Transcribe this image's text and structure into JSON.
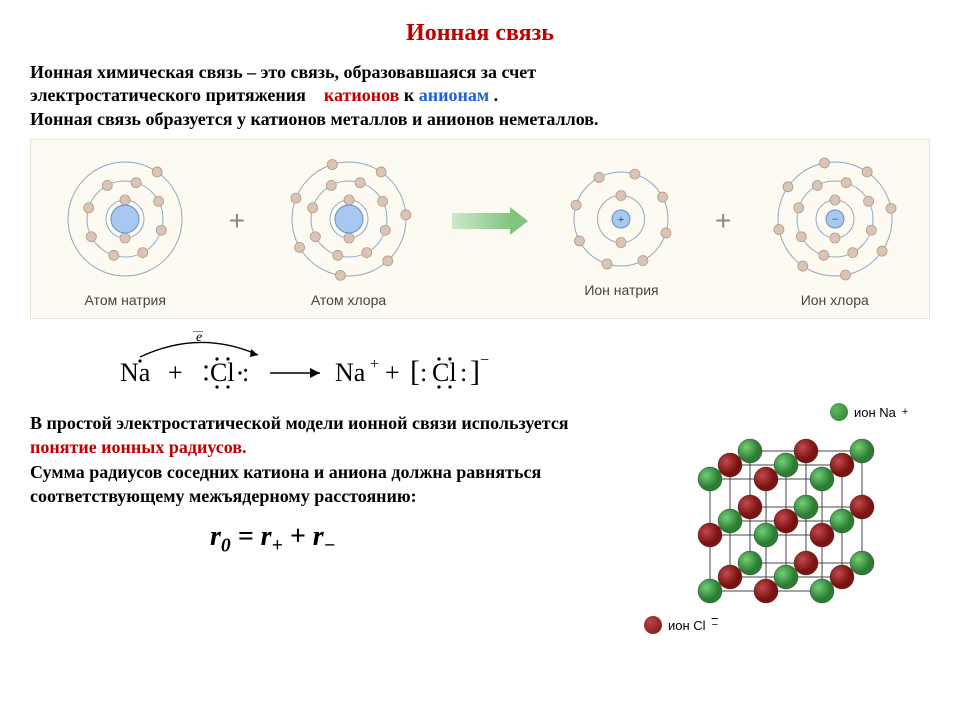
{
  "title": {
    "text": "Ионная связь",
    "color": "#c00000"
  },
  "definition": {
    "line1_a": "Ионная химическая связь – это связь, образовавшаяся за счет",
    "line2_a": "электростатического притяжения",
    "cation_word": "катионов",
    "to_word": "к",
    "anion_word": "анионам",
    "period": ".",
    "line3": "Ионная связь образуется у катионов металлов и анионов неметаллов.",
    "cation_color": "#c00000",
    "anion_color": "#1f5fd9"
  },
  "atoms_panel": {
    "background": "#fdfaf2",
    "shell_color": "#8fa8c4",
    "electron_fill": "#d9c5b8",
    "electron_stroke": "#b89880",
    "nucleus_fill": "#a8c8f0",
    "nucleus_stroke": "#6090c8",
    "arrow_color": "#7fc47f",
    "atoms": [
      {
        "label": "Атом натрия",
        "shells": [
          2,
          8,
          1
        ],
        "nucleus_r": 14,
        "size": 130,
        "center_sign": ""
      },
      {
        "label": "Атом хлора",
        "shells": [
          2,
          8,
          7
        ],
        "nucleus_r": 14,
        "size": 130,
        "center_sign": ""
      },
      {
        "label": "Ион натрия",
        "shells": [
          2,
          8
        ],
        "nucleus_r": 9,
        "size": 110,
        "center_sign": "+"
      },
      {
        "label": "Ион хлора",
        "shells": [
          2,
          8,
          8
        ],
        "nucleus_r": 9,
        "size": 130,
        "center_sign": "−"
      }
    ]
  },
  "lewis": {
    "na": "Na",
    "cl": "Cl",
    "plus": "+",
    "arrow": "→",
    "na_plus": "Na",
    "e_label": "e",
    "bar": "‾"
  },
  "bottom_text": {
    "line1": "В простой электростатической модели ионной связи используется ",
    "emph": "понятие ионных радиусов.",
    "emph_color": "#c00000",
    "line2": "Сумма радиусов соседних катиона и аниона должна равняться соответствующему межъядерному расстоянию:"
  },
  "formula": {
    "text": "r0 = r+ + r−"
  },
  "lattice": {
    "na_color": "#2e7d32",
    "cl_color": "#7a1212",
    "edge_color": "#444444",
    "legend_na": "ион Na",
    "legend_cl": "ион Cl",
    "na_sup": "+",
    "cl_sup": "−",
    "ball_r": 12
  }
}
